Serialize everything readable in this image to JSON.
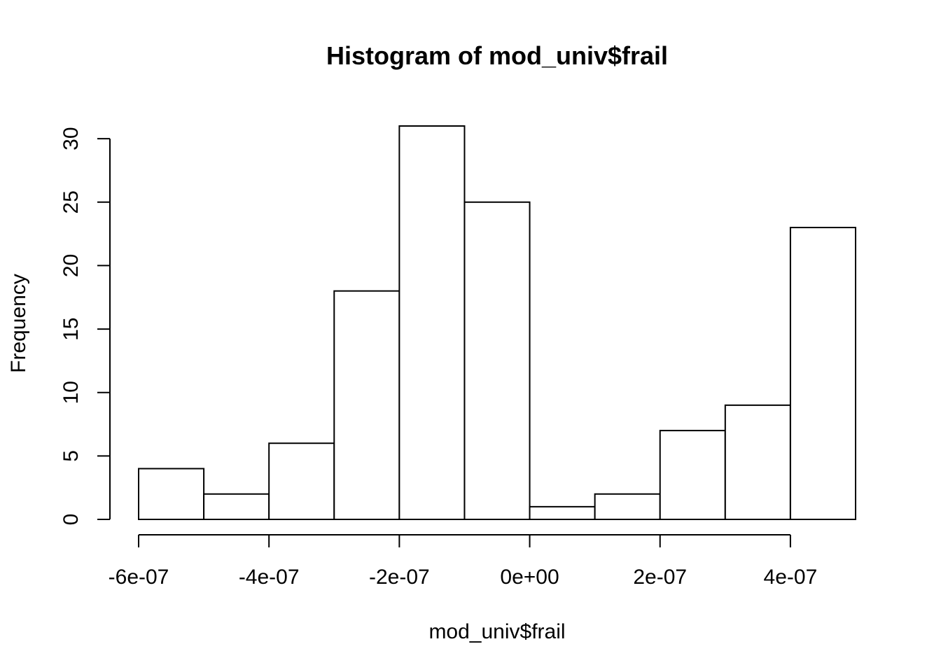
{
  "chart_data": {
    "type": "bar",
    "title": "Histogram of mod_univ$frail",
    "xlabel": "mod_univ$frail",
    "ylabel": "Frequency",
    "bins": [
      {
        "start": -6e-07,
        "end": -5e-07,
        "count": 4
      },
      {
        "start": -5e-07,
        "end": -4e-07,
        "count": 2
      },
      {
        "start": -4e-07,
        "end": -3e-07,
        "count": 6
      },
      {
        "start": -3e-07,
        "end": -2e-07,
        "count": 18
      },
      {
        "start": -2e-07,
        "end": -1e-07,
        "count": 31
      },
      {
        "start": -1e-07,
        "end": 0,
        "count": 25
      },
      {
        "start": 0,
        "end": 1e-07,
        "count": 1
      },
      {
        "start": 1e-07,
        "end": 2e-07,
        "count": 2
      },
      {
        "start": 2e-07,
        "end": 3e-07,
        "count": 7
      },
      {
        "start": 3e-07,
        "end": 4e-07,
        "count": 9
      },
      {
        "start": 4e-07,
        "end": 5e-07,
        "count": 23
      }
    ],
    "x_ticks": [
      {
        "value": -6e-07,
        "label": "-6e-07"
      },
      {
        "value": -4e-07,
        "label": "-4e-07"
      },
      {
        "value": -2e-07,
        "label": "-2e-07"
      },
      {
        "value": 0,
        "label": "0e+00"
      },
      {
        "value": 2e-07,
        "label": "2e-07"
      },
      {
        "value": 4e-07,
        "label": "4e-07"
      }
    ],
    "y_ticks": [
      {
        "value": 0,
        "label": "0"
      },
      {
        "value": 5,
        "label": "5"
      },
      {
        "value": 10,
        "label": "10"
      },
      {
        "value": 15,
        "label": "15"
      },
      {
        "value": 20,
        "label": "20"
      },
      {
        "value": 25,
        "label": "25"
      },
      {
        "value": 30,
        "label": "30"
      }
    ],
    "xlim": [
      -6e-07,
      5e-07
    ],
    "ylim": [
      0,
      31
    ],
    "grid": false,
    "legend": "none"
  }
}
